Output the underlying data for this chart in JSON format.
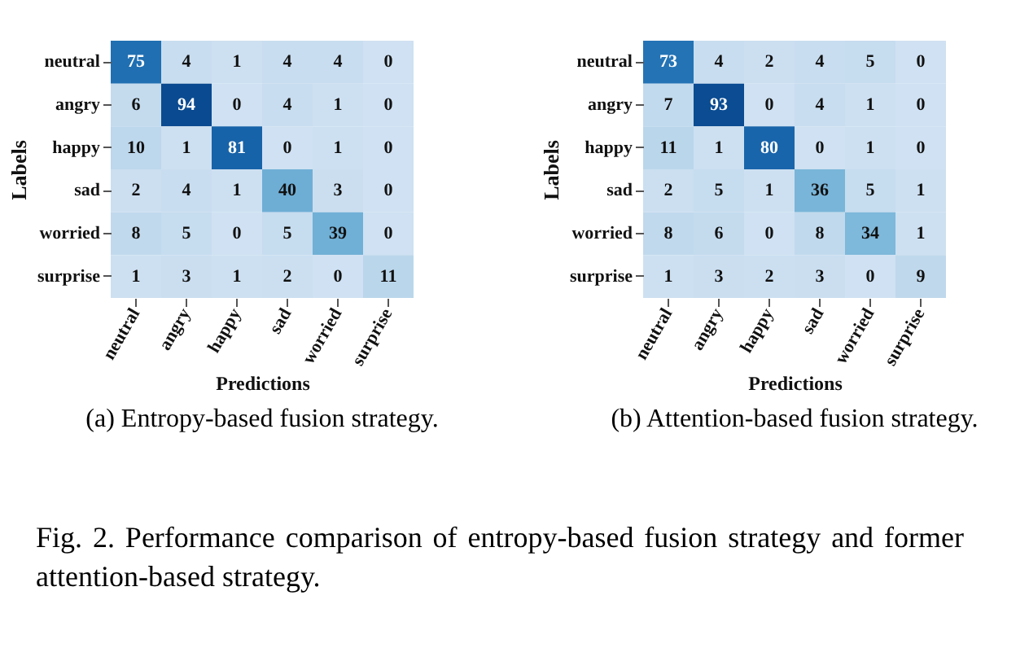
{
  "chart_data": [
    {
      "type": "heatmap",
      "title": "(a)  Entropy-based fusion strategy.",
      "xlabel": "Predictions",
      "ylabel": "Labels",
      "categories": [
        "neutral",
        "angry",
        "happy",
        "sad",
        "worried",
        "surprise"
      ],
      "y_categories": [
        "neutral",
        "angry",
        "happy",
        "sad",
        "worried",
        "surprise"
      ],
      "cells": [
        [
          75,
          4,
          1,
          4,
          4,
          0
        ],
        [
          6,
          94,
          0,
          4,
          1,
          0
        ],
        [
          10,
          1,
          81,
          0,
          1,
          0
        ],
        [
          2,
          4,
          1,
          40,
          3,
          0
        ],
        [
          8,
          5,
          0,
          5,
          39,
          0
        ],
        [
          1,
          3,
          1,
          2,
          0,
          11
        ]
      ],
      "data_labels": true,
      "annotations": [
        "Fig. 2. Performance comparison of entropy-based fusion strategy and former attention-based strategy."
      ]
    },
    {
      "type": "heatmap",
      "title": "(b)  Attention-based fusion strategy.",
      "xlabel": "Predictions",
      "ylabel": "Labels",
      "categories": [
        "neutral",
        "angry",
        "happy",
        "sad",
        "worried",
        "surprise"
      ],
      "y_categories": [
        "neutral",
        "angry",
        "happy",
        "sad",
        "worried",
        "surprise"
      ],
      "cells": [
        [
          73,
          4,
          2,
          4,
          5,
          0
        ],
        [
          7,
          93,
          0,
          4,
          1,
          0
        ],
        [
          11,
          1,
          80,
          0,
          1,
          0
        ],
        [
          2,
          5,
          1,
          36,
          5,
          1
        ],
        [
          8,
          6,
          0,
          8,
          34,
          1
        ],
        [
          1,
          3,
          2,
          3,
          0,
          9
        ]
      ],
      "data_labels": true
    }
  ]
}
